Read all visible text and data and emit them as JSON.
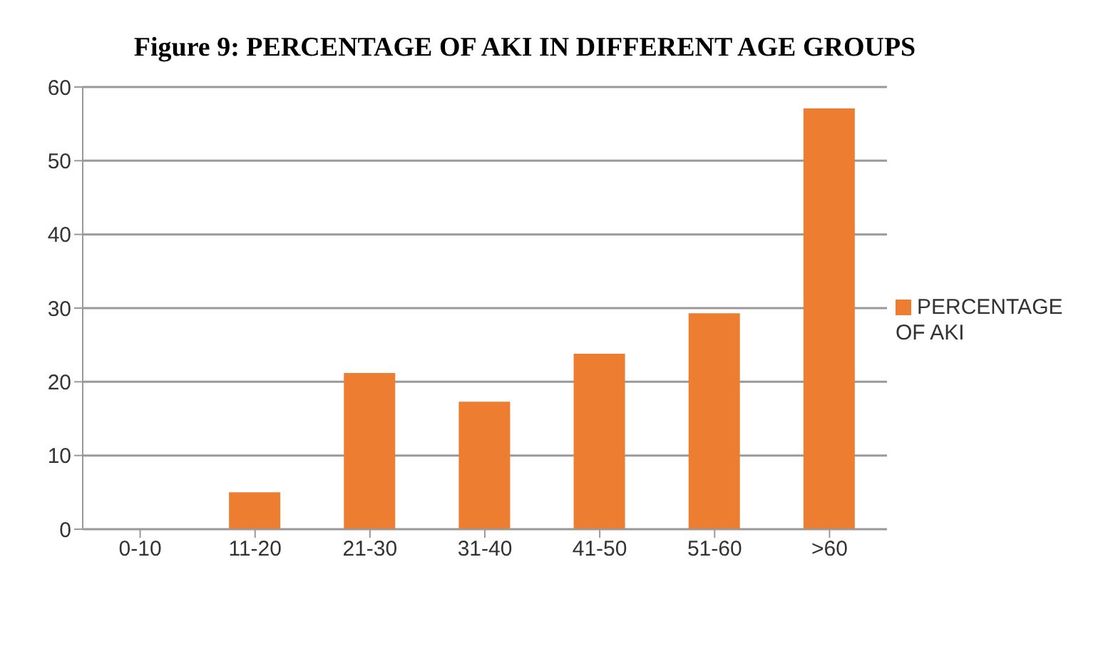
{
  "chart_data": {
    "type": "bar",
    "title": "Figure 9: PERCENTAGE OF AKI IN DIFFERENT AGE GROUPS",
    "categories": [
      "0-10",
      "11-20",
      "21-30",
      "31-40",
      "41-50",
      "51-60",
      ">60"
    ],
    "series": [
      {
        "name": "PERCENTAGE OF AKI",
        "color": "#ed7d31",
        "values": [
          0,
          5,
          21.2,
          17.3,
          23.8,
          29.3,
          57.1
        ]
      }
    ],
    "ylim": [
      0,
      60
    ],
    "yticks": [
      0,
      10,
      20,
      30,
      40,
      50,
      60
    ],
    "grid": "y",
    "legend": "right"
  }
}
